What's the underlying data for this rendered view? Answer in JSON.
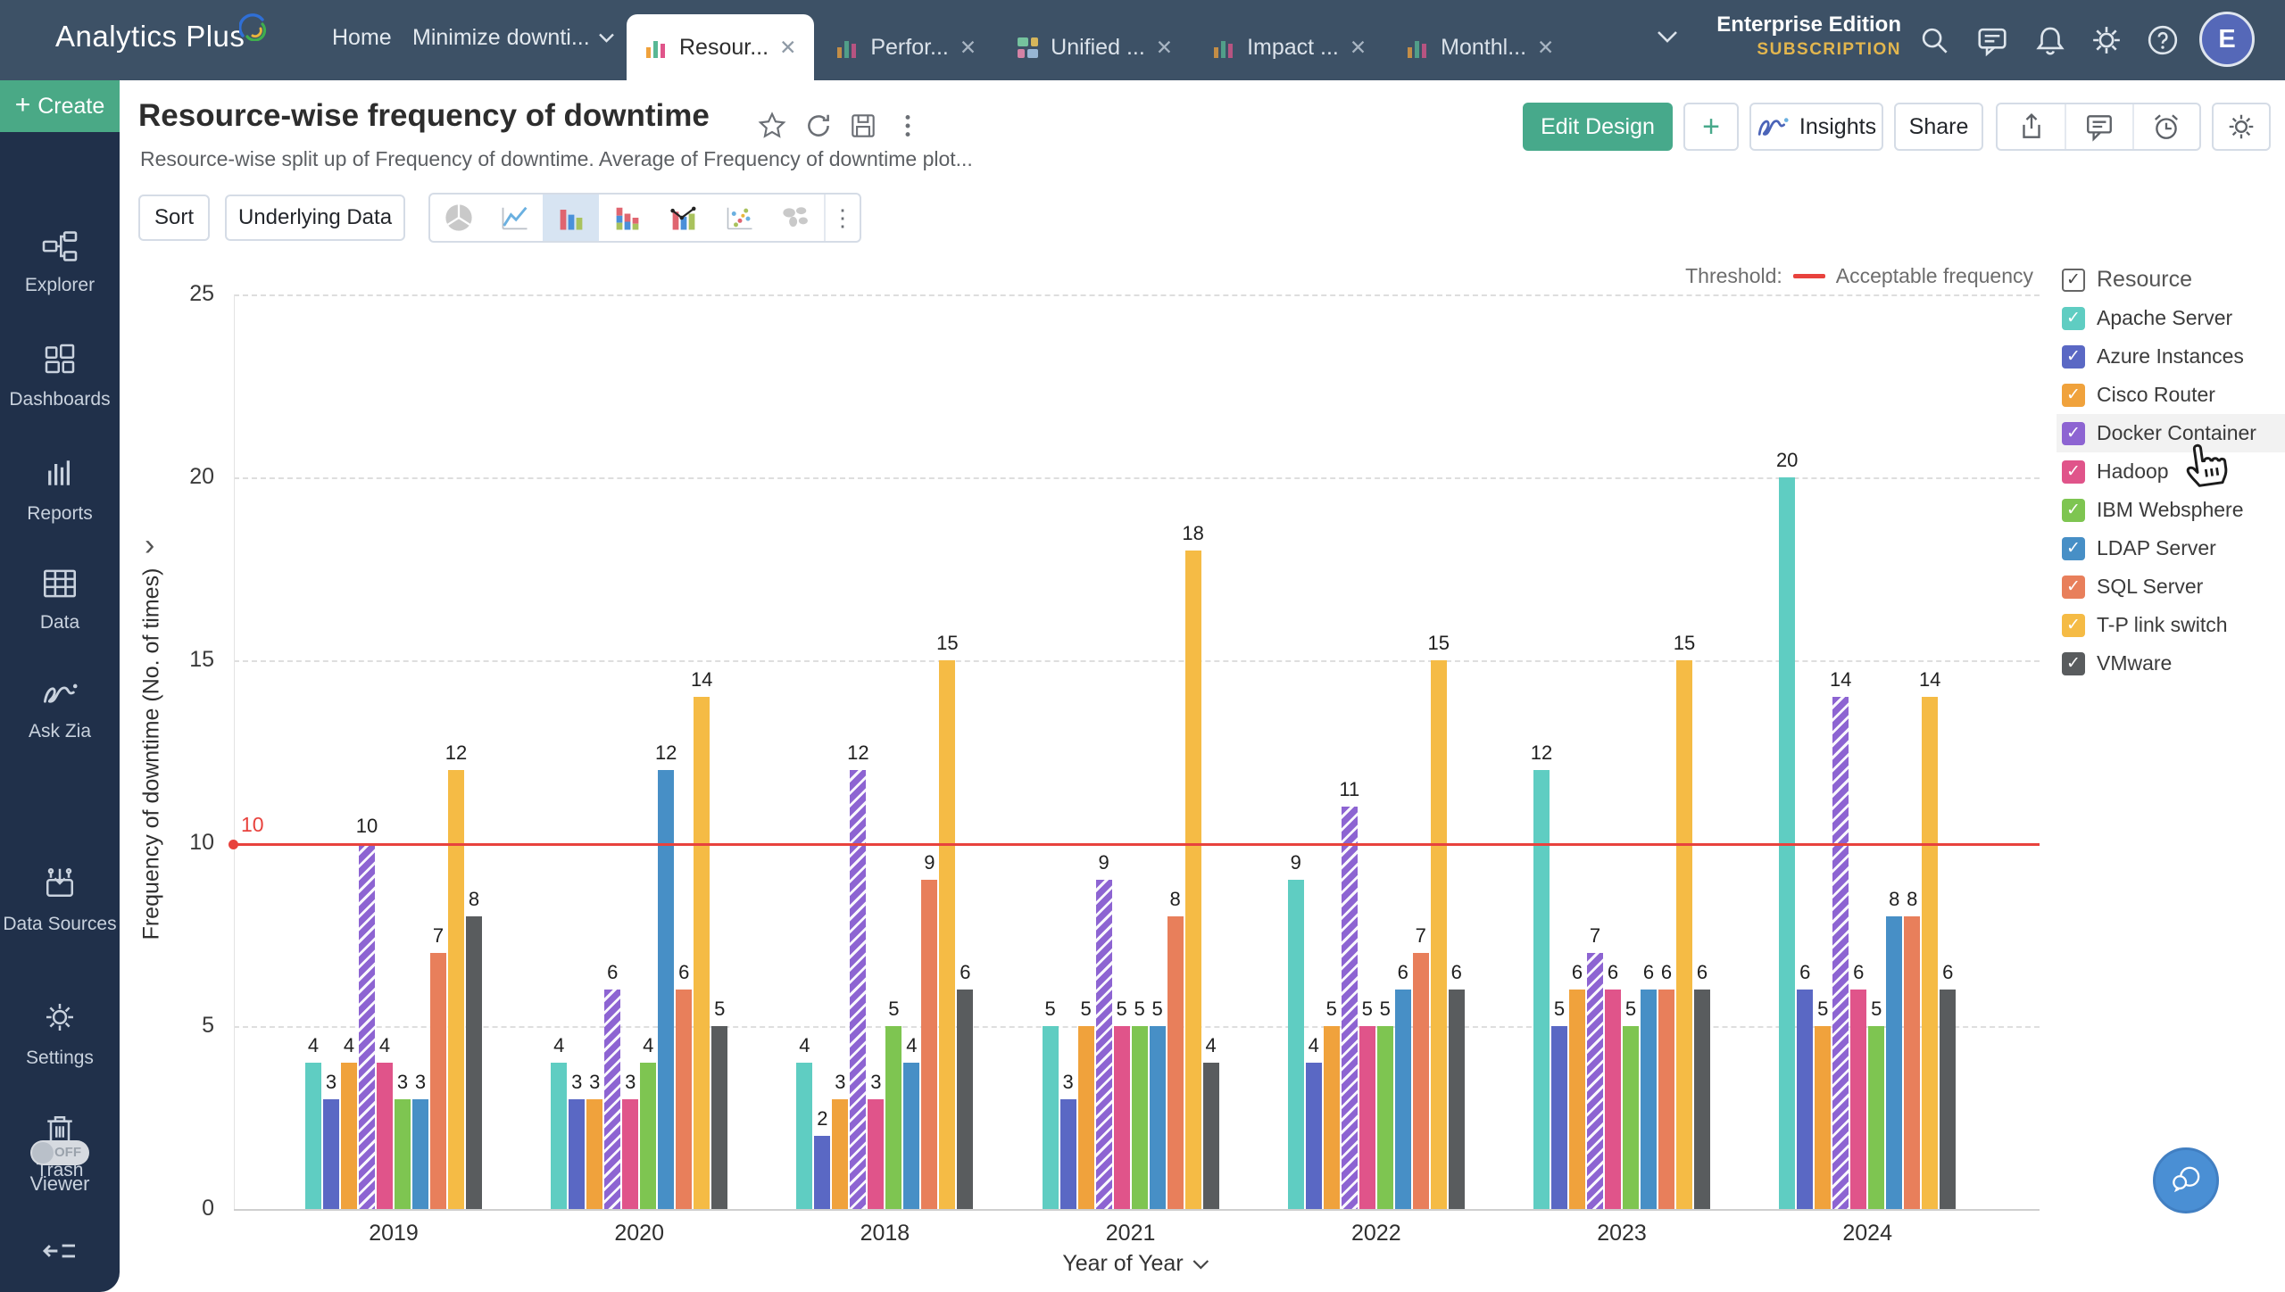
{
  "topbar": {
    "brand": "Analytics Plus",
    "nav": [
      {
        "label": "Home"
      },
      {
        "label": "Minimize downti...",
        "caret": true
      }
    ],
    "tabs": [
      {
        "label": "Resour...",
        "icon": "bar-chart-icon",
        "active": true
      },
      {
        "label": "Perfor...",
        "icon": "bar-chart-icon",
        "active": false
      },
      {
        "label": "Unified ...",
        "icon": "dashboard-grid-icon",
        "active": false
      },
      {
        "label": "Impact ...",
        "icon": "bar-chart-icon",
        "active": false
      },
      {
        "label": "Monthl...",
        "icon": "bar-chart-icon",
        "active": false
      }
    ],
    "edition_line1": "Enterprise Edition",
    "edition_line2": "SUBSCRIPTION",
    "avatar_initial": "E"
  },
  "sidebar": {
    "create": {
      "plus": "+",
      "label": "Create"
    },
    "items": [
      {
        "icon": "explorer-icon",
        "label": "Explorer"
      },
      {
        "icon": "dashboards-icon",
        "label": "Dashboards"
      },
      {
        "icon": "reports-icon",
        "label": "Reports"
      },
      {
        "icon": "data-icon",
        "label": "Data"
      },
      {
        "icon": "ask-zia-icon",
        "label": "Ask Zia"
      },
      {
        "icon": "data-sources-icon",
        "label": "Data Sources"
      },
      {
        "icon": "settings-icon",
        "label": "Settings"
      },
      {
        "icon": "trash-icon",
        "label": "Trash"
      }
    ],
    "viewer": {
      "label": "Viewer",
      "state": "OFF"
    }
  },
  "header": {
    "title": "Resource-wise frequency of downtime",
    "subtitle": "Resource-wise split up of Frequency of downtime. Average of Frequency of downtime plot...",
    "actions": {
      "edit_design": "Edit Design",
      "plus": "+",
      "insights": "Insights",
      "share": "Share"
    }
  },
  "toolbar": {
    "sort": "Sort",
    "underlying_data": "Underlying Data"
  },
  "chart_data": {
    "type": "bar",
    "title": "Resource-wise frequency of downtime",
    "xlabel": "Year of Year",
    "ylabel": "Frequency of downtime (No. of times)",
    "categories": [
      "2019",
      "2020",
      "2018",
      "2021",
      "2022",
      "2023",
      "2024"
    ],
    "yticks": [
      0,
      5,
      10,
      15,
      20,
      25
    ],
    "ylim": [
      0,
      25
    ],
    "grid": "horizontal-dashed",
    "legend_position": "right",
    "threshold": {
      "value": 10,
      "label_prefix": "Threshold:",
      "label": "Acceptable frequency",
      "color": "#e8423d"
    },
    "series": [
      {
        "name": "Apache Server",
        "color": "#5fcdc2",
        "values": [
          4,
          4,
          4,
          5,
          9,
          12,
          20
        ]
      },
      {
        "name": "Azure Instances",
        "color": "#5a68c4",
        "values": [
          3,
          3,
          2,
          3,
          4,
          5,
          6
        ]
      },
      {
        "name": "Cisco Router",
        "color": "#f0a23c",
        "values": [
          4,
          3,
          3,
          5,
          5,
          6,
          5
        ]
      },
      {
        "name": "Docker Container",
        "color": "#8d64d2",
        "hatched": true,
        "values": [
          10,
          6,
          12,
          9,
          11,
          7,
          14
        ]
      },
      {
        "name": "Hadoop",
        "color": "#e0548a",
        "values": [
          4,
          3,
          3,
          5,
          5,
          6,
          6
        ]
      },
      {
        "name": "IBM Websphere",
        "color": "#7ec551",
        "values": [
          3,
          4,
          5,
          5,
          5,
          5,
          5
        ]
      },
      {
        "name": "LDAP Server",
        "color": "#478fc6",
        "values": [
          3,
          12,
          4,
          5,
          6,
          6,
          8
        ]
      },
      {
        "name": "SQL Server",
        "color": "#e87f5b",
        "values": [
          7,
          6,
          9,
          8,
          7,
          6,
          8
        ]
      },
      {
        "name": "T-P link switch",
        "color": "#f5bb45",
        "values": [
          12,
          14,
          15,
          18,
          15,
          15,
          14
        ]
      },
      {
        "name": "VMware",
        "color": "#595c5e",
        "values": [
          8,
          5,
          6,
          4,
          6,
          6,
          6
        ]
      }
    ]
  },
  "legend": {
    "header": "Resource",
    "header_checked": true,
    "highlighted_item": "Docker Container",
    "check_glyph": "✓"
  }
}
